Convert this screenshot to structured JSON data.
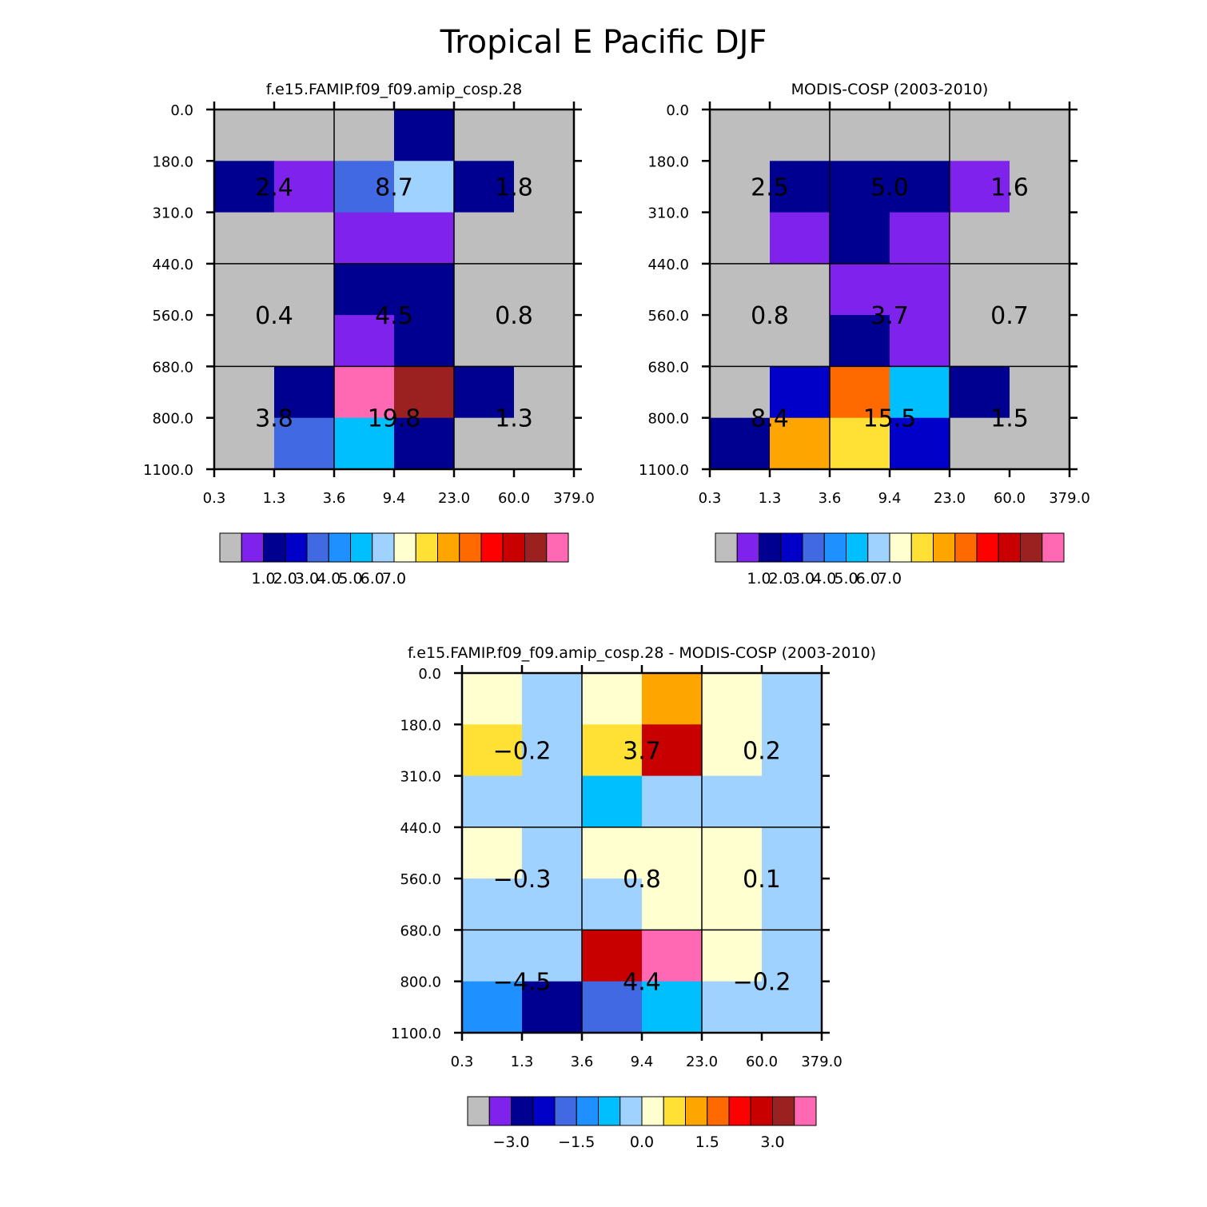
{
  "figure_title": "Tropical E Pacific DJF",
  "palette": [
    "#bebebe",
    "#7f22eb",
    "#000090",
    "#0000c8",
    "#4169e1",
    "#1e90ff",
    "#00bfff",
    "#a0d2ff",
    "#ffffd0",
    "#ffe135",
    "#ffa500",
    "#ff6a00",
    "#ff0000",
    "#c80000",
    "#9b2121",
    "#ff69b4"
  ],
  "chart_data": [
    {
      "type": "heatmap",
      "title": "f.e15.FAMIP.f09_f09.amip_cosp.28",
      "x_ticks": [
        "0.3",
        "1.3",
        "3.6",
        "9.4",
        "23.0",
        "60.0",
        "379.0"
      ],
      "y_ticks": [
        "0.0",
        "180.0",
        "310.0",
        "440.0",
        "560.0",
        "680.0",
        "800.0",
        "1100.0"
      ],
      "cell_colors": [
        [
          0,
          0,
          0,
          2,
          0,
          0
        ],
        [
          2,
          1,
          4,
          7,
          2,
          0
        ],
        [
          0,
          0,
          1,
          1,
          0,
          0
        ],
        [
          0,
          0,
          2,
          2,
          0,
          0
        ],
        [
          0,
          0,
          1,
          2,
          0,
          0
        ],
        [
          0,
          2,
          15,
          14,
          2,
          0
        ],
        [
          0,
          4,
          6,
          2,
          0,
          0
        ]
      ],
      "group_values": [
        [
          "2.4",
          "8.7",
          "1.8"
        ],
        [
          "0.4",
          "4.5",
          "0.8"
        ],
        [
          "3.8",
          "19.8",
          "1.3"
        ]
      ],
      "colorbar_labels": [
        "1.0",
        "2.0",
        "3.0",
        "4.0",
        "5.0",
        "6.0",
        "7.0"
      ]
    },
    {
      "type": "heatmap",
      "title": "MODIS-COSP (2003-2010)",
      "x_ticks": [
        "0.3",
        "1.3",
        "3.6",
        "9.4",
        "23.0",
        "60.0",
        "379.0"
      ],
      "y_ticks": [
        "0.0",
        "180.0",
        "310.0",
        "440.0",
        "560.0",
        "680.0",
        "800.0",
        "1100.0"
      ],
      "cell_colors": [
        [
          0,
          0,
          0,
          0,
          0,
          0
        ],
        [
          0,
          2,
          2,
          2,
          1,
          0
        ],
        [
          0,
          1,
          2,
          1,
          0,
          0
        ],
        [
          0,
          0,
          1,
          1,
          0,
          0
        ],
        [
          0,
          0,
          2,
          1,
          0,
          0
        ],
        [
          0,
          3,
          11,
          6,
          2,
          0
        ],
        [
          2,
          10,
          9,
          3,
          0,
          0
        ]
      ],
      "group_values": [
        [
          "2.5",
          "5.0",
          "1.6"
        ],
        [
          "0.8",
          "3.7",
          "0.7"
        ],
        [
          "8.4",
          "15.5",
          "1.5"
        ]
      ],
      "colorbar_labels": [
        "1.0",
        "2.0",
        "3.0",
        "4.0",
        "5.0",
        "6.0",
        "7.0"
      ]
    },
    {
      "type": "heatmap",
      "title": "f.e15.FAMIP.f09_f09.amip_cosp.28 - MODIS-COSP (2003-2010)",
      "x_ticks": [
        "0.3",
        "1.3",
        "3.6",
        "9.4",
        "23.0",
        "60.0",
        "379.0"
      ],
      "y_ticks": [
        "0.0",
        "180.0",
        "310.0",
        "440.0",
        "560.0",
        "680.0",
        "800.0",
        "1100.0"
      ],
      "cell_colors": [
        [
          8,
          7,
          8,
          10,
          8,
          7
        ],
        [
          9,
          7,
          9,
          13,
          8,
          7
        ],
        [
          7,
          7,
          6,
          7,
          7,
          7
        ],
        [
          8,
          7,
          8,
          8,
          8,
          7
        ],
        [
          7,
          7,
          7,
          8,
          8,
          7
        ],
        [
          7,
          7,
          13,
          15,
          8,
          7
        ],
        [
          5,
          2,
          4,
          6,
          7,
          7
        ]
      ],
      "group_values": [
        [
          "-0.2",
          "3.7",
          "0.2"
        ],
        [
          "-0.3",
          "0.8",
          "0.1"
        ],
        [
          "-4.5",
          "4.4",
          "-0.2"
        ]
      ],
      "colorbar_labels": [
        "-3.0",
        "-1.5",
        "0.0",
        "1.5",
        "3.0"
      ]
    }
  ]
}
